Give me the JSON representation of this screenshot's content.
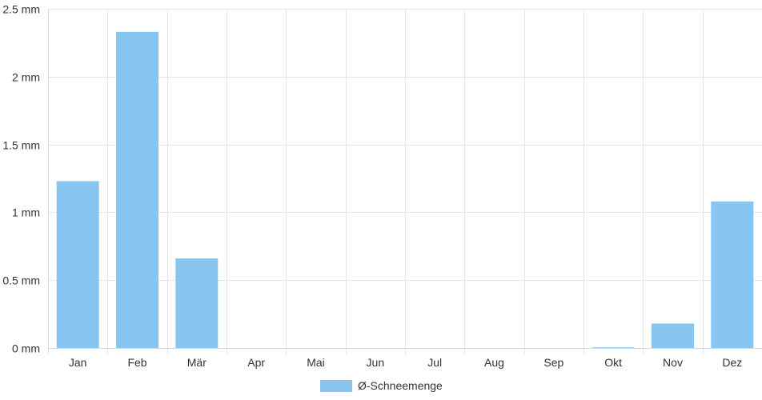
{
  "chart_data": {
    "type": "bar",
    "categories": [
      "Jan",
      "Feb",
      "Mär",
      "Apr",
      "Mai",
      "Jun",
      "Jul",
      "Aug",
      "Sep",
      "Okt",
      "Nov",
      "Dez"
    ],
    "series": [
      {
        "name": "Ø-Schneemenge",
        "values": [
          1.23,
          2.33,
          0.66,
          0,
          0,
          0,
          0,
          0,
          0,
          0.005,
          0.18,
          1.08
        ],
        "color": "#88c6f2"
      }
    ],
    "y_ticks": [
      "0 mm",
      "0.5 mm",
      "1 mm",
      "1.5 mm",
      "2 mm",
      "2.5 mm"
    ],
    "ylim": [
      0,
      2.5
    ],
    "y_tick_step": 0.5,
    "grid": true,
    "legend_position": "bottom",
    "grid_color": "#e6e6e6",
    "axis_color": "#d9d9d9"
  }
}
